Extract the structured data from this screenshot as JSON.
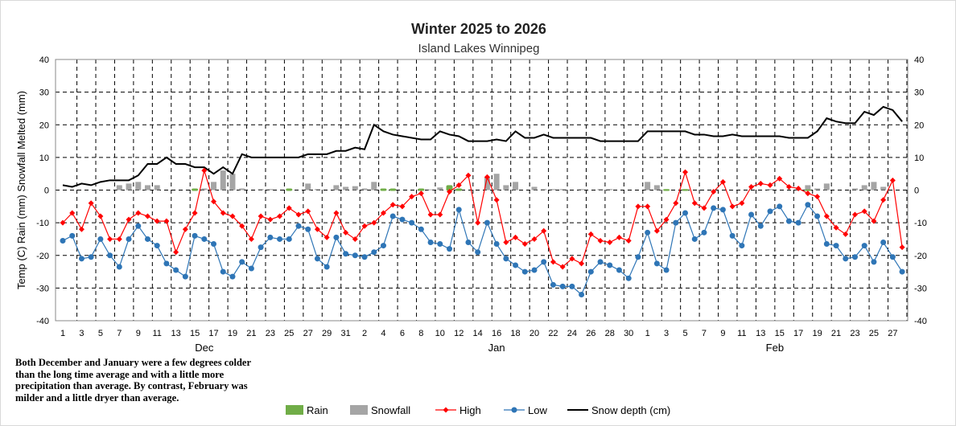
{
  "chart_data": {
    "type": "bar+line",
    "title": "Winter 2025 to 2026",
    "subtitle": "Island Lakes Winnipeg",
    "ylabel": "Temp (C) Rain (mm) Snowfall Melted (mm)",
    "ylim": [
      -40,
      40
    ],
    "yticks": [
      40,
      30,
      20,
      10,
      0,
      -10,
      -20,
      -30,
      -40
    ],
    "grid": true,
    "months": [
      "Dec",
      "Jan",
      "Feb"
    ],
    "month_days": [
      31,
      31,
      28
    ],
    "note": "Both December and January were a few degrees colder than the long time average and with a little more precipitation than average. By contrast, February was milder and a little dryer than average.",
    "legend": [
      "Rain",
      "Snowfall",
      "High",
      "Low",
      "Snow depth (cm)"
    ],
    "legend_placement": "bottom",
    "colors": {
      "rain": "#70ad47",
      "snowfall": "#a5a5a5",
      "high": "#ff0000",
      "low": "#2e75b6",
      "snow_depth": "#000000"
    },
    "high": [
      -10,
      -7,
      -12,
      -4,
      -8,
      -15,
      -15,
      -9,
      -7,
      -8,
      -9.5,
      -9.5,
      -19,
      -12,
      -7,
      6,
      -3.5,
      -7,
      -8,
      -11,
      -15,
      -8,
      -9,
      -8,
      -5.5,
      -7.5,
      -6.5,
      -12,
      -14.5,
      -7,
      -13,
      -15,
      -11,
      -10,
      -7,
      -4.5,
      -5,
      -2,
      -1,
      -7.5,
      -7.5,
      -0.5,
      1.5,
      4.5,
      -10,
      4,
      -3,
      -16,
      -14.5,
      -16.5,
      -15,
      -12.5,
      -22,
      -23.5,
      -21,
      -22.5,
      -13.5,
      -15.5,
      -16,
      -14.5,
      -15.5,
      -5,
      -5,
      -12.5,
      -9,
      -4,
      5.5,
      -4,
      -5.5,
      -0.5,
      2.5,
      -5,
      -4,
      1,
      2,
      1.5,
      3.5,
      1,
      0.5,
      -1,
      -2,
      -8,
      -11.5,
      -13.5,
      -7.5,
      -6.5,
      -9.5,
      -3,
      3,
      -17.5
    ],
    "low": [
      -15.5,
      -14,
      -21,
      -20.5,
      -15,
      -20,
      -23.5,
      -15,
      -11,
      -15,
      -17,
      -22.5,
      -24.5,
      -26.5,
      -14,
      -15,
      -16.5,
      -25,
      -26.5,
      -22,
      -24,
      -17.5,
      -14.5,
      -15,
      -15,
      -11,
      -12,
      -21,
      -23.5,
      -14.5,
      -19.5,
      -20,
      -20.5,
      -19,
      -17,
      -8,
      -9,
      -10,
      -12,
      -16,
      -16.5,
      -18,
      -6,
      -16,
      -19,
      -10,
      -16.5,
      -21,
      -23,
      -25,
      -24.5,
      -22,
      -29,
      -29.5,
      -29.5,
      -32,
      -25,
      -22,
      -23,
      -24.5,
      -27,
      -20.5,
      -13,
      -22.5,
      -24.5,
      -10,
      -7,
      -15,
      -13,
      -5.5,
      -6,
      -14,
      -17,
      -7.5,
      -11,
      -6.5,
      -5,
      -9.5,
      -10,
      -4.5,
      -8,
      -16.5,
      -17,
      -21,
      -20.5,
      -17,
      -22,
      -16,
      -20.5,
      -25
    ],
    "snow_depth": [
      1.5,
      1,
      2,
      1.5,
      2.5,
      3,
      3,
      3,
      4.5,
      8,
      8,
      10,
      8,
      8,
      7,
      7,
      5,
      7,
      5,
      11,
      10,
      10,
      10,
      10,
      10,
      10,
      11,
      11,
      11,
      12,
      12,
      13,
      12.5,
      20,
      18,
      17,
      16.5,
      16,
      15.5,
      15.5,
      18,
      17,
      16.5,
      15,
      15,
      15,
      15.5,
      15,
      18,
      16,
      16,
      17,
      16,
      16,
      16,
      16,
      16,
      15,
      15,
      15,
      15,
      15,
      18,
      18,
      18,
      18,
      18,
      17,
      17,
      16.5,
      16.5,
      17,
      16.5,
      16.5,
      16.5,
      16.5,
      16.5,
      16,
      16,
      16,
      18,
      22,
      21,
      20.5,
      20.5,
      24,
      23,
      25.5,
      24.5,
      21
    ],
    "snowfall": [
      0,
      0,
      0,
      0,
      0,
      0,
      1.5,
      2,
      2.5,
      1.5,
      1.5,
      0,
      0,
      0,
      0,
      0.5,
      2.5,
      6,
      5,
      0.5,
      0,
      0.3,
      0.3,
      0,
      0,
      0,
      2,
      0.3,
      0,
      1.5,
      1,
      1.2,
      0.5,
      2.5,
      0,
      0,
      0,
      0,
      0,
      0.2,
      0.8,
      0,
      0,
      0,
      0,
      4,
      5,
      1.5,
      2.5,
      0,
      1,
      0.3,
      0.3,
      0.3,
      0,
      0.3,
      0,
      0.3,
      0.3,
      0,
      0,
      0,
      2.5,
      1.5,
      0,
      0,
      0,
      0,
      0,
      0,
      0,
      0,
      0,
      0,
      0,
      0.3,
      0,
      0,
      0.3,
      1.5,
      0.5,
      2,
      0,
      0,
      0.5,
      1.5,
      2.5,
      1,
      0,
      0
    ],
    "rain": [
      0,
      0,
      0,
      0,
      0,
      0,
      0,
      0,
      0,
      0,
      0,
      0,
      0,
      0,
      0.5,
      0,
      0,
      0,
      0,
      0,
      0,
      0,
      0,
      0,
      0.5,
      0,
      0,
      0,
      0,
      0,
      0,
      0,
      0,
      0,
      0.5,
      0.5,
      0,
      0,
      0.5,
      0,
      0,
      1.5,
      0.5,
      0,
      0,
      0,
      0,
      0,
      0,
      0,
      0,
      0,
      0,
      0,
      0,
      0,
      0,
      0,
      0,
      0,
      0,
      0,
      0,
      0,
      0.3,
      0,
      0.3,
      0,
      0,
      0,
      0,
      0,
      0,
      0,
      0,
      0,
      0,
      0,
      0,
      0.2,
      0,
      0,
      0,
      0,
      0,
      0,
      0,
      0,
      0,
      0
    ]
  }
}
